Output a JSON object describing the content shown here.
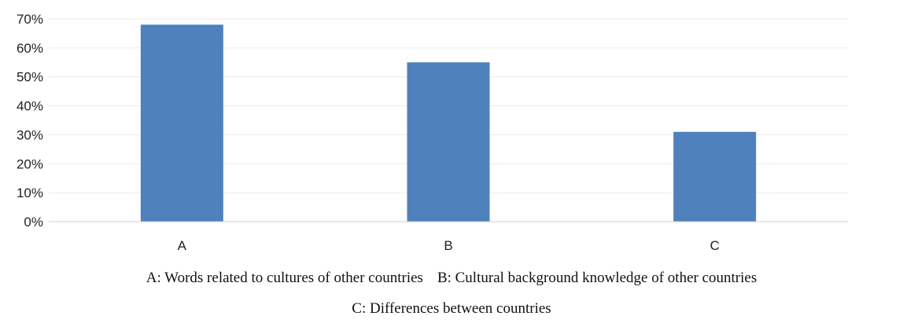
{
  "chart_data": {
    "type": "bar",
    "categories": [
      "A",
      "B",
      "C"
    ],
    "values": [
      68,
      55,
      31
    ],
    "ylim": [
      0,
      70
    ],
    "ytick_values": [
      0,
      10,
      20,
      30,
      40,
      50,
      60,
      70
    ],
    "ytick_labels": [
      "0%",
      "10%",
      "20%",
      "30%",
      "40%",
      "50%",
      "60%",
      "70%"
    ],
    "grid": true,
    "legend": "none",
    "bar_color": "#4f81bd",
    "grid_color": "#ececec",
    "axis_color": "#d0d0d0",
    "notes": [
      "A: Words related to cultures of other countries",
      "B: Cultural background knowledge of other countries",
      "C: Differences between countries"
    ]
  }
}
